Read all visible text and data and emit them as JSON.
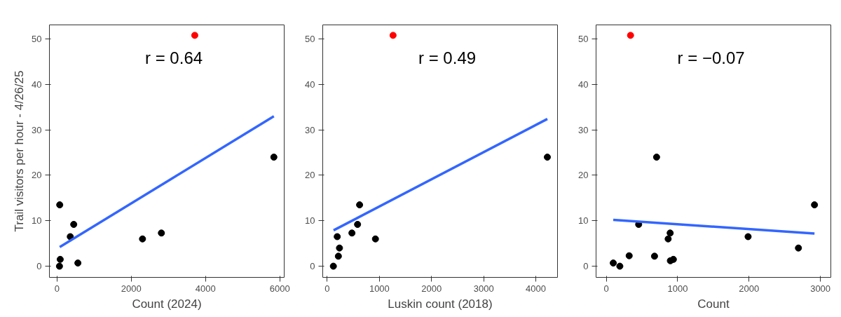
{
  "chart_data": [
    {
      "type": "scatter",
      "xlabel": "Count (2024)",
      "ylabel": "Trail visitors per hour - 4/26/25",
      "annotations": [
        "r = 0.64"
      ],
      "xlim": [
        -205,
        6118
      ],
      "ylim": [
        -2.46,
        53.1
      ],
      "xticks": [
        0,
        2000,
        4000,
        6000
      ],
      "yticks": [
        0,
        10,
        20,
        30,
        40,
        50
      ],
      "grid": false,
      "marker": "circle",
      "series": [
        {
          "color": "#000000",
          "x": [
            73,
            450,
            357,
            86,
            66,
            562,
            2302,
            2811,
            5840
          ],
          "values": [
            13.5,
            9.2,
            6.5,
            1.5,
            0,
            0.7,
            6.0,
            7.3,
            24.0
          ]
        },
        {
          "color": "#ff0000",
          "x": [
            3710
          ],
          "values": [
            50.8
          ]
        },
        {
          "type": "line",
          "color": "#3366ff",
          "marker": "none",
          "x": [
            73,
            5840
          ],
          "values": [
            4.2,
            33.0
          ]
        }
      ]
    },
    {
      "type": "scatter",
      "xlabel": "Luskin count (2018)",
      "annotations": [
        "r = 0.49"
      ],
      "xlim": [
        -87,
        4416
      ],
      "ylim": [
        -2.46,
        53.1
      ],
      "xticks": [
        0,
        1000,
        2000,
        3000,
        4000
      ],
      "yticks": [
        0,
        10,
        20,
        30,
        40,
        50
      ],
      "grid": false,
      "marker": "circle",
      "series": [
        {
          "color": "#000000",
          "x": [
            117,
            213,
            234,
            191,
            473,
            581,
            620,
            924,
            4221
          ],
          "values": [
            0,
            2.2,
            4.0,
            6.5,
            7.3,
            9.2,
            13.5,
            6.0,
            24.0
          ]
        },
        {
          "color": "#ff0000",
          "x": [
            1262
          ],
          "values": [
            50.8
          ]
        },
        {
          "type": "line",
          "color": "#3366ff",
          "marker": "none",
          "x": [
            121,
            4221
          ],
          "values": [
            7.9,
            32.4
          ]
        }
      ]
    },
    {
      "type": "scatter",
      "xlabel": "Count",
      "annotations": [
        "r = −0.07"
      ],
      "xlim": [
        -143,
        3146
      ],
      "ylim": [
        -2.46,
        53.1
      ],
      "xticks": [
        0,
        1000,
        2000,
        3000
      ],
      "yticks": [
        0,
        10,
        20,
        30,
        40,
        50
      ],
      "grid": false,
      "marker": "circle",
      "series": [
        {
          "color": "#000000",
          "x": [
            98,
            190,
            321,
            454,
            676,
            705,
            867,
            895,
            898,
            940,
            1987,
            2692,
            2917
          ],
          "values": [
            0.7,
            0,
            2.3,
            9.2,
            2.2,
            24.0,
            6.0,
            7.3,
            1.2,
            1.5,
            6.5,
            4.0,
            13.5
          ]
        },
        {
          "color": "#ff0000",
          "x": [
            340
          ],
          "values": [
            50.8
          ]
        },
        {
          "type": "line",
          "color": "#3366ff",
          "marker": "none",
          "x": [
            98,
            2917
          ],
          "values": [
            10.2,
            7.2
          ]
        }
      ]
    }
  ]
}
